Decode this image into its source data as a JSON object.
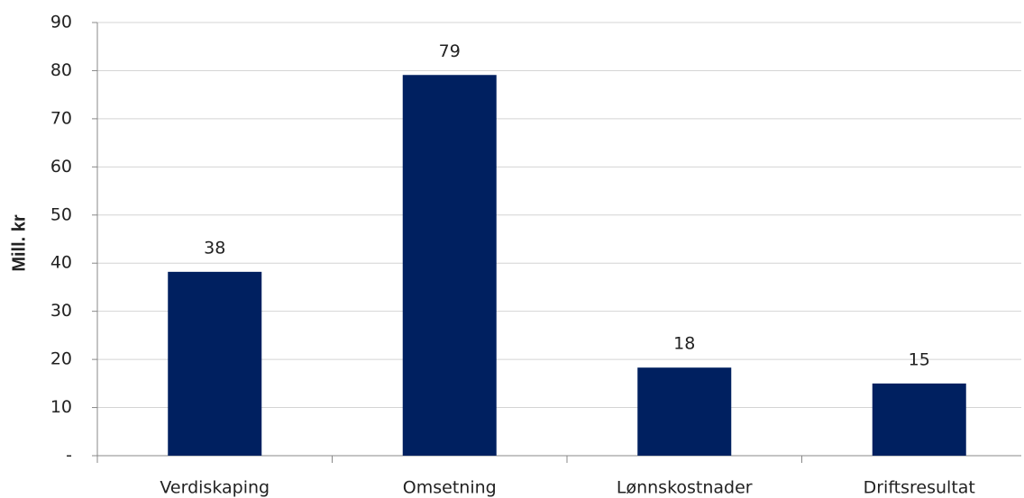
{
  "chart_data": {
    "type": "bar",
    "y_label": "Mill. kr",
    "categories": [
      "Verdiskaping",
      "Omsetning",
      "Lønnskostnader",
      "Driftsresultat"
    ],
    "values": [
      38.2,
      79.1,
      18.3,
      15.0
    ],
    "value_labels": [
      "38",
      "79",
      "18",
      "15"
    ],
    "color": "#002060",
    "ylim": [
      0,
      90
    ],
    "yticks": [
      {
        "value": 0,
        "label": "-"
      },
      10,
      20,
      30,
      40,
      50,
      60,
      70,
      80,
      90
    ],
    "grid": true
  }
}
